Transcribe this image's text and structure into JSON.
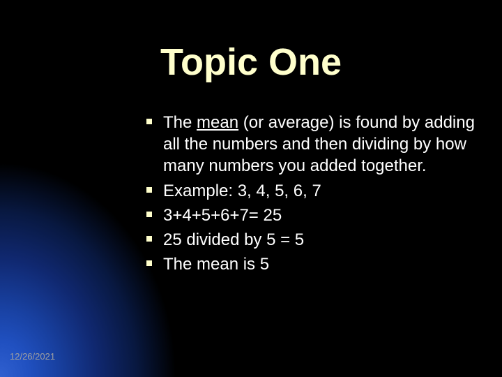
{
  "slide": {
    "title": "Topic One",
    "title_color": "#ffffcc",
    "title_fontsize": 54,
    "background_color": "#000000",
    "gradient": {
      "position": "bottom-left",
      "colors": [
        "#3060d0",
        "#2050c0",
        "#1840a0",
        "#102870",
        "#081840",
        "#000000"
      ]
    },
    "bullets": [
      {
        "prefix": "The ",
        "emphasis": "mean",
        "suffix": " (or average) is found by adding all the numbers and then dividing by how many numbers you added together."
      },
      {
        "text": "Example:  3, 4, 5, 6, 7"
      },
      {
        "text": "3+4+5+6+7= 25"
      },
      {
        "text": "25 divided by 5 = 5"
      },
      {
        "text": "The mean is 5"
      }
    ],
    "bullet_marker_color": "#ffffcc",
    "bullet_text_color": "#ffffff",
    "bullet_fontsize": 24
  },
  "footer": {
    "date": "12/26/2021",
    "color": "#a0a0a0",
    "fontsize": 13
  }
}
